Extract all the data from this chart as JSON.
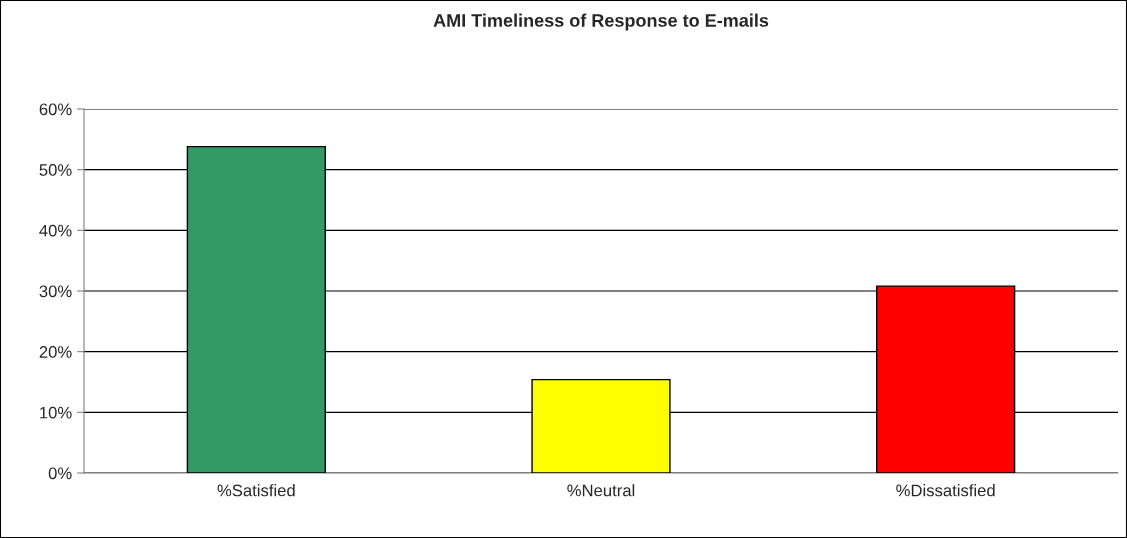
{
  "chart_data": {
    "type": "bar",
    "title": "AMI Timeliness of Response to E-mails",
    "categories": [
      "%Satisfied",
      "%Neutral",
      "%Dissatisfied"
    ],
    "values": [
      53.8,
      15.4,
      30.8
    ],
    "colors": [
      "#339966",
      "#ffff00",
      "#ff0000"
    ],
    "ylim": [
      0,
      60
    ],
    "yticks": [
      {
        "value": 0,
        "label": "0%"
      },
      {
        "value": 10,
        "label": "10%"
      },
      {
        "value": 20,
        "label": "20%"
      },
      {
        "value": 30,
        "label": "30%"
      },
      {
        "value": 40,
        "label": "40%"
      },
      {
        "value": 50,
        "label": "50%"
      },
      {
        "value": 60,
        "label": "60%"
      }
    ],
    "grid": "y",
    "legend": false
  }
}
